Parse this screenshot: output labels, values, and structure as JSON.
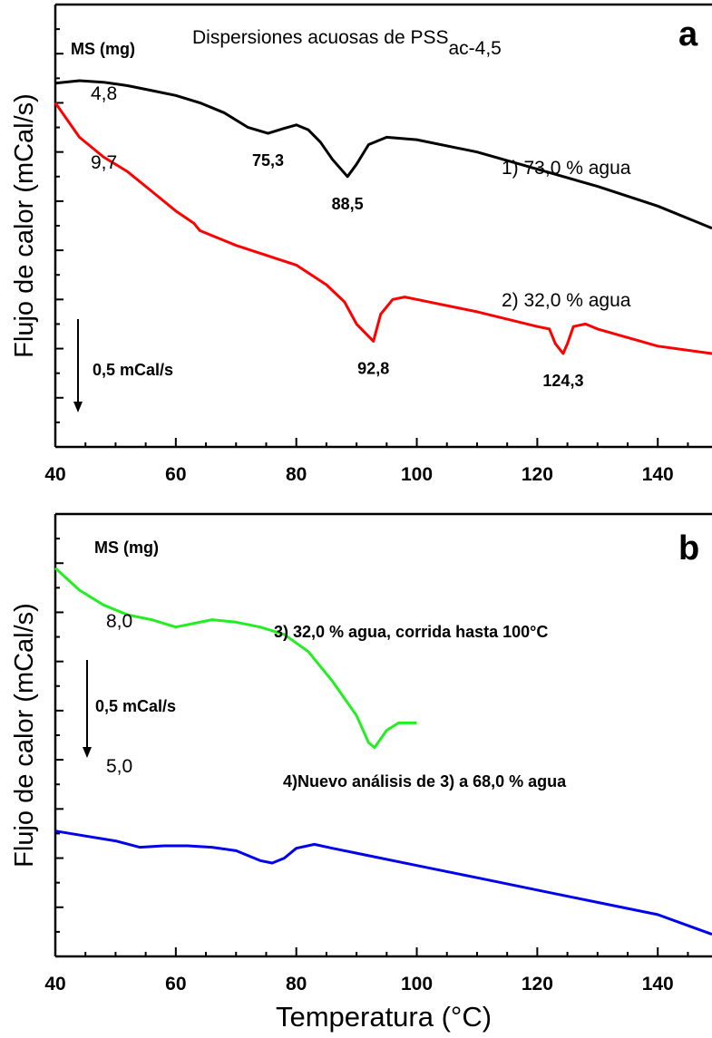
{
  "chart_data": [
    {
      "panel": "a",
      "type": "line",
      "title": "Dispersiones acuosas de PSS",
      "title_sub": "ac-4,5",
      "ylabel": "Flujo de calor (mCal/s)",
      "xlim": [
        40,
        149
      ],
      "x_ticks": [
        40,
        60,
        80,
        100,
        120,
        140
      ],
      "ms_label": "MS (mg)",
      "scale_label": "0,5 mCal/s",
      "y_units": "mCal/s, arbitrary offset (scale bar 0,5 mCal/s)",
      "ylim": [
        0,
        9
      ],
      "series": [
        {
          "name": "1) 73,0 % agua",
          "mass": "4,8",
          "color": "#000000",
          "x": [
            40,
            44,
            48,
            52,
            56,
            60,
            64,
            68,
            72,
            75.3,
            78,
            80,
            82,
            84,
            86,
            88.5,
            90,
            92,
            95,
            100,
            110,
            120,
            130,
            140,
            149
          ],
          "y": [
            7.4,
            7.45,
            7.42,
            7.35,
            7.25,
            7.15,
            7.0,
            6.8,
            6.5,
            6.38,
            6.48,
            6.55,
            6.45,
            6.2,
            5.85,
            5.5,
            5.75,
            6.15,
            6.3,
            6.25,
            6.0,
            5.65,
            5.3,
            4.9,
            4.45
          ],
          "labels": [
            {
              "x": 75.3,
              "text": "75,3"
            },
            {
              "x": 88.5,
              "text": "88,5"
            }
          ]
        },
        {
          "name": "2) 32,0 % agua",
          "mass": "9,7",
          "color": "#ff0000",
          "x": [
            40,
            44,
            48,
            52,
            56,
            60,
            63,
            64,
            70,
            80,
            85,
            88,
            90,
            92.8,
            94,
            96,
            98,
            100,
            110,
            120,
            122,
            123,
            124.3,
            125,
            126,
            128,
            130,
            140,
            149
          ],
          "y": [
            7.0,
            6.3,
            5.9,
            5.6,
            5.2,
            4.8,
            4.55,
            4.4,
            4.1,
            3.7,
            3.3,
            2.95,
            2.5,
            2.15,
            2.7,
            3.0,
            3.05,
            3.0,
            2.75,
            2.45,
            2.4,
            2.1,
            1.9,
            2.1,
            2.45,
            2.5,
            2.4,
            2.05,
            1.9
          ],
          "labels": [
            {
              "x": 92.8,
              "text": "92,8"
            },
            {
              "x": 124.3,
              "text": "124,3"
            }
          ]
        }
      ]
    },
    {
      "panel": "b",
      "type": "line",
      "ylabel": "Flujo de calor (mCal/s)",
      "xlabel": "Temperatura (°C)",
      "xlim": [
        40,
        149
      ],
      "x_ticks": [
        40,
        60,
        80,
        100,
        120,
        140
      ],
      "ms_label": "MS (mg)",
      "scale_label": "0,5 mCal/s",
      "y_units": "mCal/s, arbitrary offset (scale bar 0,5 mCal/s)",
      "ylim": [
        0,
        9
      ],
      "series": [
        {
          "name": "3) 32,0 % agua, corrida hasta 100°C",
          "mass": "8,0",
          "color": "#22ee22",
          "x": [
            40,
            44,
            48,
            52,
            56,
            60,
            62,
            66,
            70,
            74,
            78,
            82,
            86,
            90,
            92,
            93,
            95,
            97,
            100
          ],
          "y": [
            7.9,
            7.45,
            7.15,
            6.95,
            6.85,
            6.7,
            6.75,
            6.85,
            6.8,
            6.7,
            6.55,
            6.2,
            5.6,
            4.9,
            4.35,
            4.25,
            4.6,
            4.75,
            4.75
          ]
        },
        {
          "name": "4)Nuevo análisis de 3) a 68,0 % agua",
          "mass": "5,0",
          "color": "#0000ee",
          "x": [
            40,
            45,
            50,
            54,
            58,
            62,
            66,
            70,
            74,
            76,
            78,
            80,
            83,
            86,
            90,
            100,
            110,
            120,
            130,
            140,
            149
          ],
          "y": [
            2.55,
            2.45,
            2.35,
            2.22,
            2.25,
            2.25,
            2.22,
            2.15,
            1.95,
            1.9,
            2.0,
            2.2,
            2.28,
            2.2,
            2.1,
            1.85,
            1.6,
            1.35,
            1.1,
            0.85,
            0.45
          ]
        }
      ]
    }
  ]
}
